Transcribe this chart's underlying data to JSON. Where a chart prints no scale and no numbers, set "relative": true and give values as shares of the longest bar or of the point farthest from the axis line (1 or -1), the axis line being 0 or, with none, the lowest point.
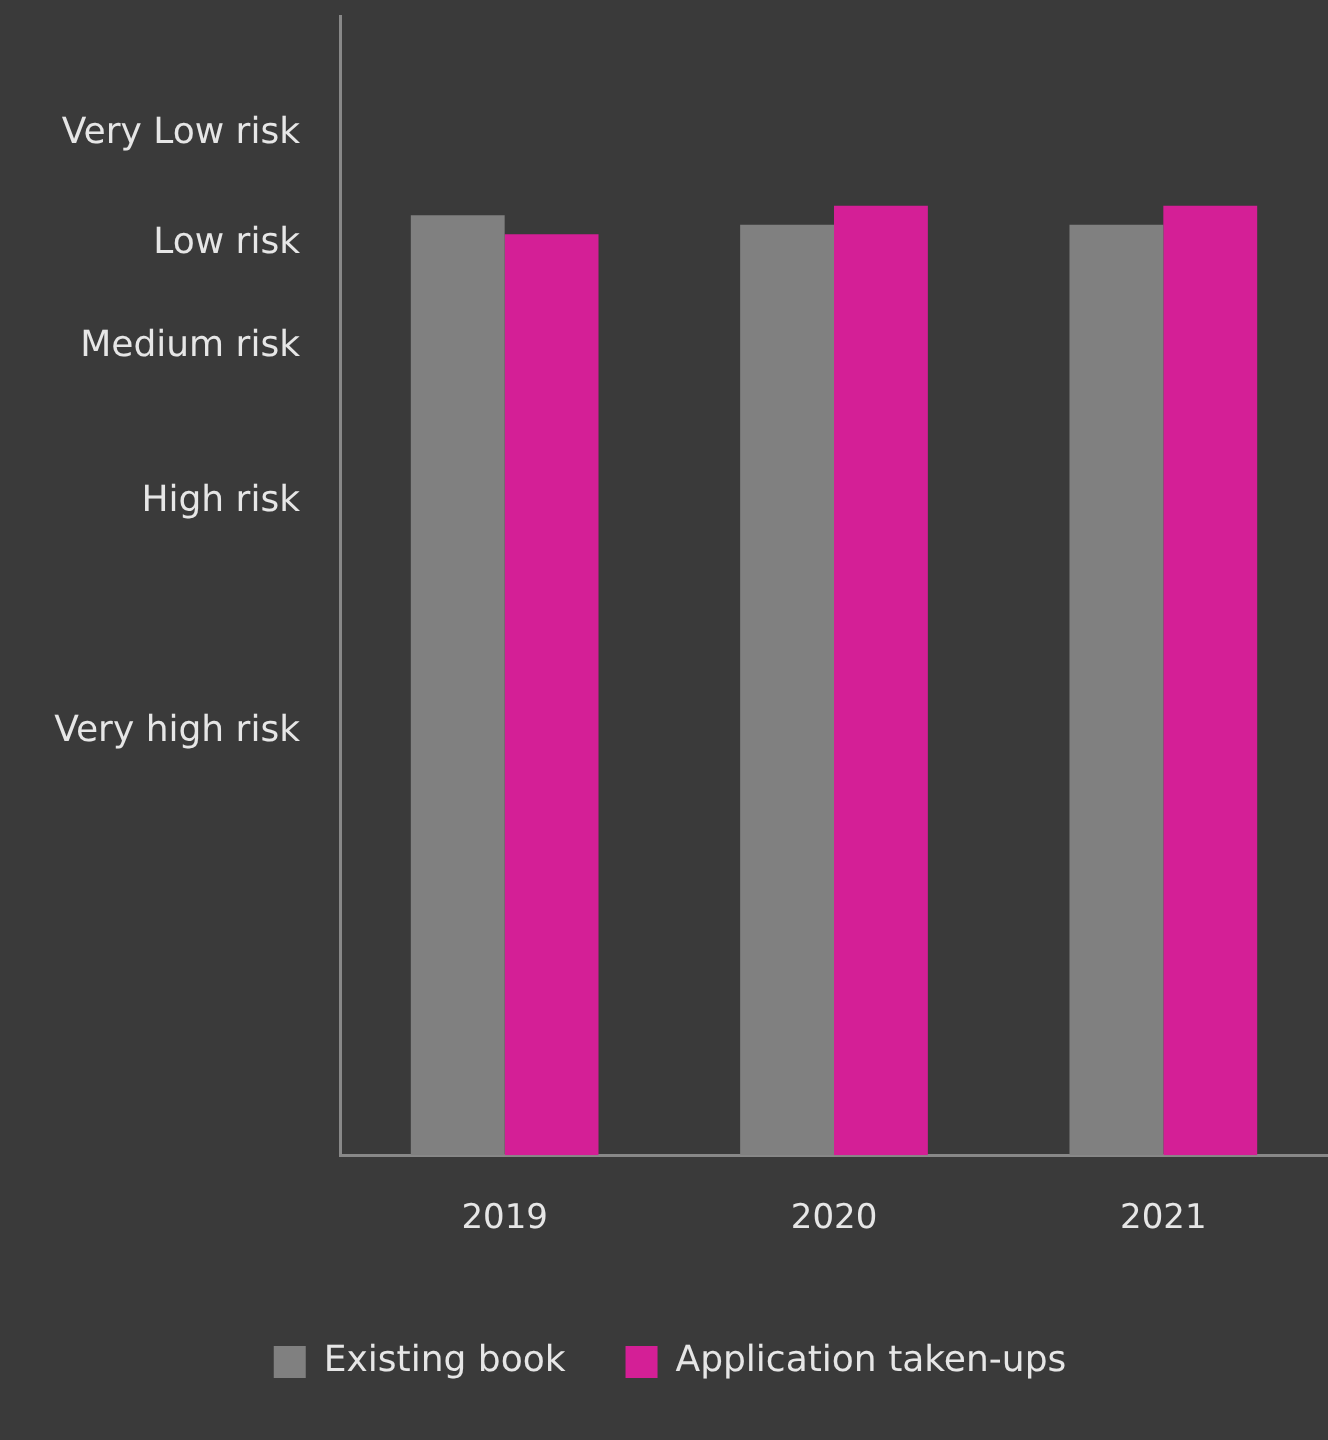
{
  "chart_data": {
    "type": "bar",
    "categories": [
      "2019",
      "2020",
      "2021"
    ],
    "series": [
      {
        "name": "Existing book",
        "color": "#808080",
        "values": [
          0.99,
          0.98,
          0.98
        ]
      },
      {
        "name": "Application taken-ups",
        "color": "#d41f96",
        "values": [
          0.97,
          1.0,
          1.0
        ]
      }
    ],
    "relative": true,
    "annotations": [
      "Very Low risk",
      "Low risk",
      "Medium risk",
      "High risk",
      "Very high risk"
    ],
    "grid": false,
    "legend": "bottom"
  }
}
